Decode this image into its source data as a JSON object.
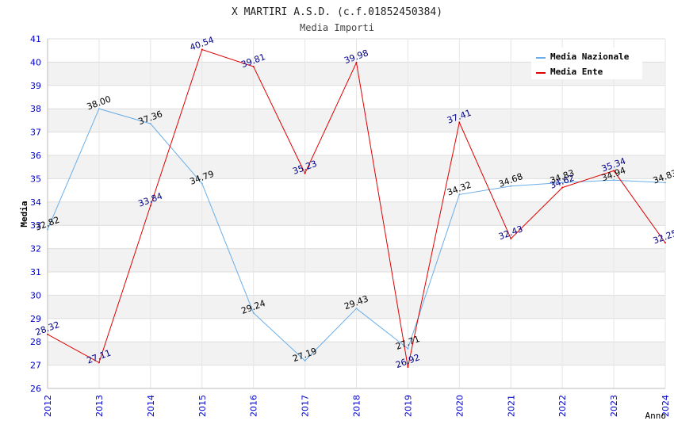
{
  "chart_data": {
    "type": "line",
    "title": "X MARTIRI A.S.D. (c.f.01852450384)",
    "subtitle": "Media Importi",
    "xlabel": "Anno",
    "ylabel": "Media",
    "x": [
      "2012",
      "2013",
      "2014",
      "2015",
      "2016",
      "2017",
      "2018",
      "2019",
      "2020",
      "2021",
      "2022",
      "2023",
      "2024"
    ],
    "ylim": [
      26,
      41
    ],
    "yticks": [
      "26",
      "27",
      "28",
      "29",
      "30",
      "31",
      "32",
      "33",
      "34",
      "35",
      "36",
      "37",
      "38",
      "39",
      "40",
      "41"
    ],
    "legend_position": "top-right",
    "series": [
      {
        "name": "Media Nazionale",
        "color": "#6aaee8",
        "label_color": "#000000",
        "values": [
          32.82,
          38.0,
          37.36,
          34.79,
          29.24,
          27.19,
          29.43,
          27.71,
          34.32,
          34.68,
          34.83,
          34.94,
          34.83
        ],
        "labels": [
          "32.82",
          "38.00",
          "37.36",
          "34.79",
          "29.24",
          "27.19",
          "29.43",
          "27.71",
          "34.32",
          "34.68",
          "34.83",
          "34.94",
          "34.83"
        ]
      },
      {
        "name": "Media Ente",
        "color": "#e00000",
        "label_color": "#00008b",
        "values": [
          28.32,
          27.11,
          33.84,
          40.54,
          39.81,
          35.23,
          39.98,
          26.92,
          37.41,
          32.43,
          34.62,
          35.34,
          32.25
        ],
        "labels": [
          "28.32",
          "27.11",
          "33.84",
          "40.54",
          "39.81",
          "35.23",
          "39.98",
          "26.92",
          "37.41",
          "32.43",
          "34.62",
          "35.34",
          "32.25"
        ]
      }
    ]
  },
  "colors": {
    "axis_tick": "#0000cc",
    "grid_band": "#f2f2f2",
    "grid_line": "#dddddd"
  }
}
